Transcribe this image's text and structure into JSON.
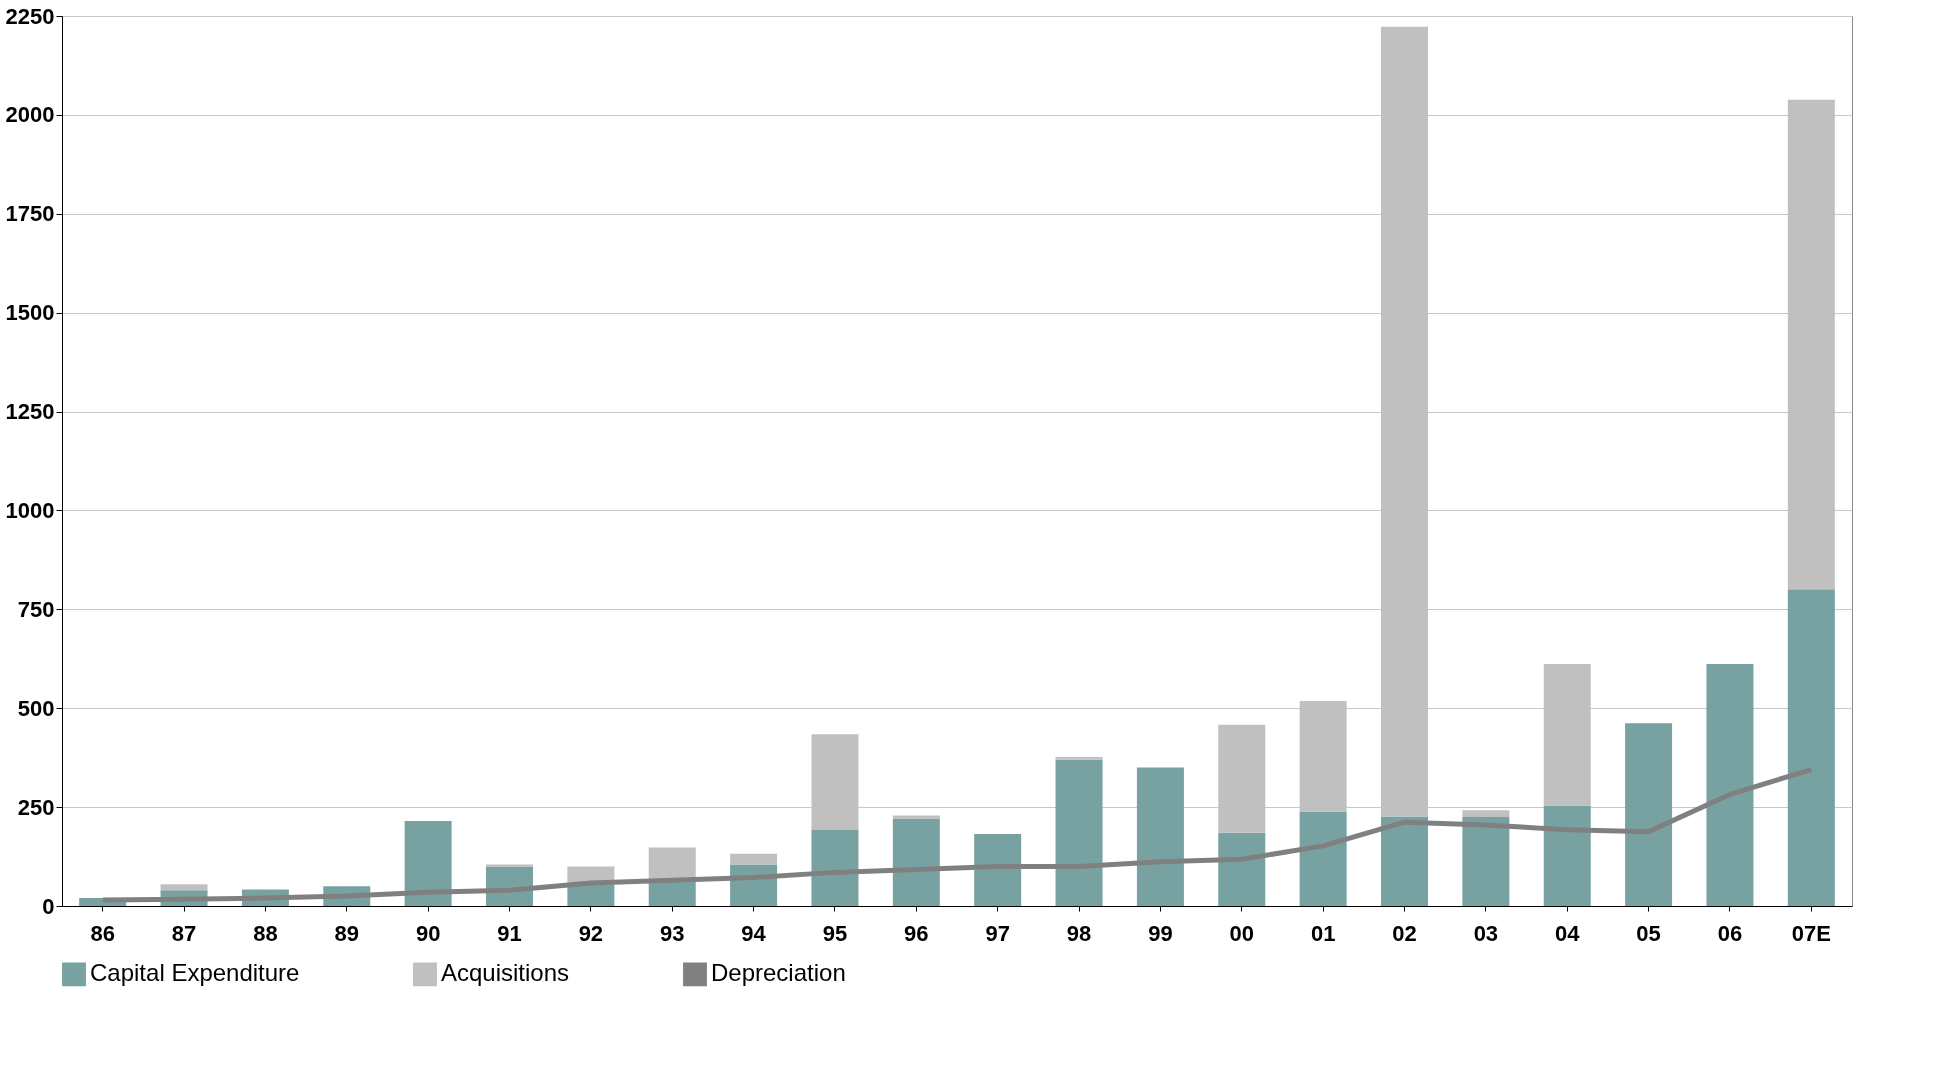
{
  "chart_data": {
    "type": "bar",
    "stacked": true,
    "categories": [
      "86",
      "87",
      "88",
      "89",
      "90",
      "91",
      "92",
      "93",
      "94",
      "95",
      "96",
      "97",
      "98",
      "99",
      "00",
      "01",
      "02",
      "03",
      "04",
      "05",
      "06",
      "07E"
    ],
    "series": [
      {
        "name": "Capital Expenditure",
        "color": "#78a2a2",
        "values": [
          20,
          40,
          42,
          50,
          215,
          100,
          55,
          65,
          105,
          192,
          220,
          182,
          370,
          350,
          185,
          239,
          226,
          225,
          254,
          462,
          612,
          801
        ]
      },
      {
        "name": "Acquisitions",
        "color": "#c0c0c0",
        "values": [
          0,
          15,
          0,
          0,
          0,
          5,
          45,
          83,
          27,
          242,
          9,
          0,
          7,
          0,
          273,
          279,
          1997,
          17,
          358,
          0,
          0,
          1237
        ]
      },
      {
        "name": "Depreciation",
        "type": "line",
        "color": "#808080",
        "values": [
          15,
          17,
          20,
          25,
          35,
          40,
          58,
          65,
          72,
          85,
          92,
          100,
          100,
          112,
          118,
          152,
          212,
          205,
          193,
          188,
          282,
          345
        ]
      }
    ],
    "ylim": [
      0,
      2250
    ],
    "yticks": [
      0,
      250,
      500,
      750,
      1000,
      1250,
      1500,
      1750,
      2000,
      2250
    ],
    "grid": "y",
    "legend": "bottom",
    "marker": "none",
    "line_style": "solid"
  }
}
